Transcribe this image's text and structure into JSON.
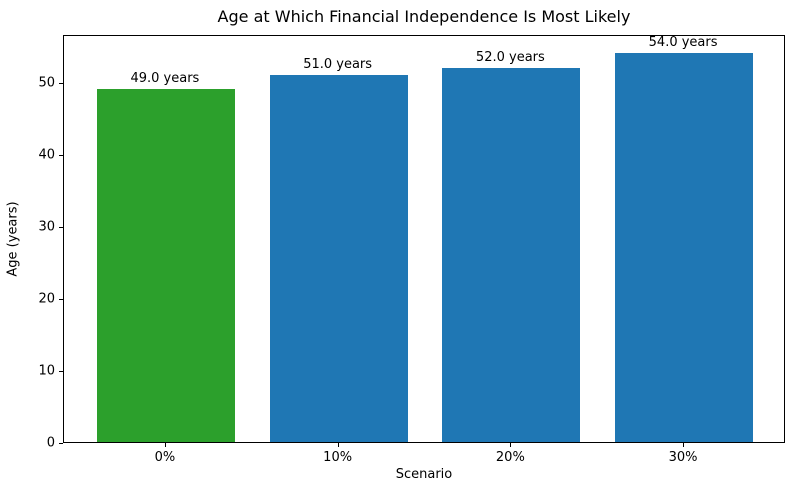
{
  "chart_data": {
    "type": "bar",
    "title": "Age at Which Financial Independence Is Most Likely",
    "xlabel": "Scenario",
    "ylabel": "Age (years)",
    "categories": [
      "0%",
      "10%",
      "20%",
      "30%"
    ],
    "values": [
      49.0,
      51.0,
      52.0,
      54.0
    ],
    "bar_labels": [
      "49.0 years",
      "51.0 years",
      "52.0 years",
      "54.0 years"
    ],
    "bar_colors": [
      "#2ca02c",
      "#1f77b4",
      "#1f77b4",
      "#1f77b4"
    ],
    "highlight_color": "#2ca02c",
    "default_color": "#1f77b4",
    "ylim": [
      0,
      56.7
    ],
    "yticks": [
      0,
      10,
      20,
      30,
      40,
      50
    ],
    "bar_width_fraction": 0.8,
    "x_margin_units": 0.59,
    "grid": false,
    "legend_position": "none"
  }
}
